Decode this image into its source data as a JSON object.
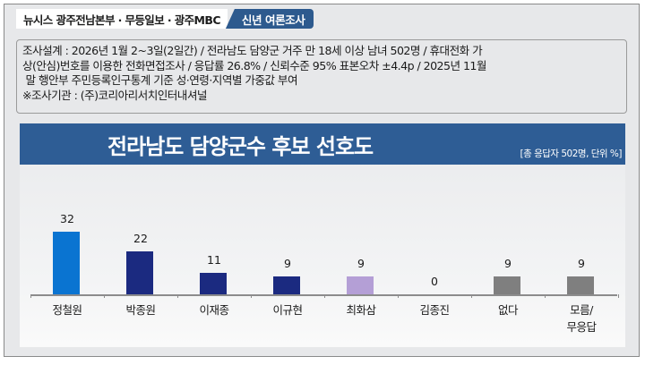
{
  "header": {
    "sources": "뉴시스  광주전남본부 · 무등일보 · 광주MBC",
    "badge": "신년  여론조사"
  },
  "methodology": {
    "line1": "조사설계 : 2026년 1월 2~3일(2일간) / 전라남도 담양군 거주 만 18세 이상 남녀 502명 / 휴대전화 가",
    "line2": "상(안심)번호를 이용한 전화면접조사 / 응답률 26.8% / 신뢰수준 95% 표본오차 ±4.4p / 2025년 11월",
    "line3": " 말 행안부 주민등록인구통계 기준 성·연령·지역별 가중값 부여",
    "line4": "※조사기관 : (주)코리아리서치인터내셔널"
  },
  "chart": {
    "title": "전라남도 담양군수 후보 선호도",
    "note": "[총 응답자 502명, 단위 %]"
  },
  "chart_data": {
    "type": "bar",
    "title": "전라남도 담양군수 후보 선호도",
    "subtitle": "[총 응답자 502명, 단위 %]",
    "xlabel": "",
    "ylabel": "",
    "ylim": [
      0,
      35
    ],
    "grid": false,
    "legend": "none",
    "categories": [
      "정철원",
      "박종원",
      "이재종",
      "이규현",
      "최화삼",
      "김종진",
      "없다",
      "모름/\n무응답"
    ],
    "values": [
      32,
      22,
      11,
      9,
      9,
      0,
      9,
      9
    ],
    "colors": [
      "#0a74d1",
      "#1b2a80",
      "#1b2a80",
      "#1b2a80",
      "#b49fd6",
      "#1b2a80",
      "#7f7f7f",
      "#7f7f7f"
    ]
  }
}
